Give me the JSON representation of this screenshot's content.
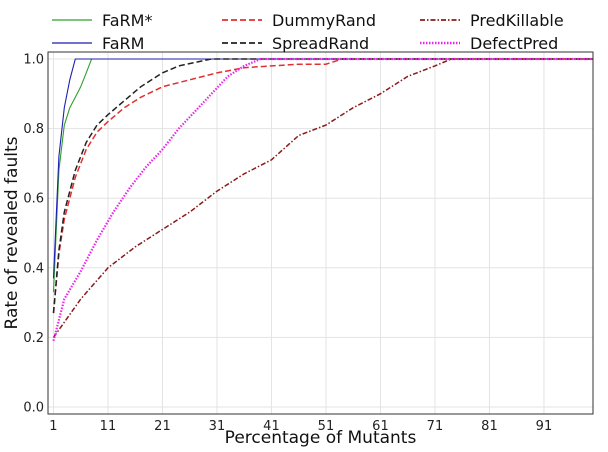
{
  "chart_data": {
    "type": "line",
    "title": "",
    "xlabel": "Percentage of Mutants",
    "ylabel": "Rate of revealed faults",
    "xlim": [
      0,
      100
    ],
    "ylim": [
      -0.02,
      1.02
    ],
    "xticks": [
      1,
      11,
      21,
      31,
      41,
      51,
      61,
      71,
      81,
      91
    ],
    "xtick_labels": [
      "1",
      "11",
      "21",
      "31",
      "41",
      "51",
      "61",
      "71",
      "81",
      "91"
    ],
    "yticks": [
      0.0,
      0.2,
      0.4,
      0.6,
      0.8,
      1.0
    ],
    "ytick_labels": [
      "0.0",
      "0.2",
      "0.4",
      "0.6",
      "0.8",
      "1.0"
    ],
    "grid": true,
    "legend_position": "top",
    "series": [
      {
        "name": "FaRM*",
        "color": "#2ca02c",
        "style": "solid",
        "x": [
          1,
          2,
          3,
          4,
          5,
          6,
          7,
          8,
          100
        ],
        "y": [
          0.33,
          0.68,
          0.81,
          0.86,
          0.89,
          0.92,
          0.96,
          1.0,
          1.0
        ]
      },
      {
        "name": "FaRM",
        "color": "#1f1fb0",
        "style": "solid",
        "x": [
          1,
          2,
          3,
          4,
          5,
          100
        ],
        "y": [
          0.37,
          0.72,
          0.86,
          0.94,
          1.0,
          1.0
        ]
      },
      {
        "name": "DummyRand",
        "color": "#e03030",
        "style": "dashed",
        "x": [
          1,
          2,
          3,
          5,
          7,
          9,
          11,
          14,
          17,
          21,
          26,
          31,
          36,
          41,
          46,
          51,
          54,
          100
        ],
        "y": [
          0.27,
          0.44,
          0.54,
          0.66,
          0.74,
          0.79,
          0.82,
          0.86,
          0.89,
          0.92,
          0.94,
          0.96,
          0.975,
          0.98,
          0.985,
          0.985,
          1.0,
          1.0
        ]
      },
      {
        "name": "SpreadRand",
        "color": "#222222",
        "style": "dashed",
        "x": [
          1,
          2,
          3,
          5,
          7,
          9,
          11,
          14,
          17,
          21,
          24,
          27,
          30,
          100
        ],
        "y": [
          0.27,
          0.45,
          0.56,
          0.68,
          0.76,
          0.81,
          0.84,
          0.88,
          0.92,
          0.96,
          0.98,
          0.99,
          1.0,
          1.0
        ]
      },
      {
        "name": "PredKillable",
        "color": "#8b1a1a",
        "style": "dashdot",
        "x": [
          1,
          6,
          11,
          16,
          21,
          26,
          31,
          36,
          41,
          46,
          51,
          56,
          61,
          66,
          71,
          74,
          100
        ],
        "y": [
          0.2,
          0.31,
          0.4,
          0.46,
          0.51,
          0.56,
          0.62,
          0.67,
          0.71,
          0.78,
          0.81,
          0.86,
          0.9,
          0.95,
          0.98,
          1.0,
          1.0
        ]
      },
      {
        "name": "DefectPred",
        "color": "#ee22ee",
        "style": "dotted",
        "x": [
          1,
          3,
          6,
          9,
          12,
          15,
          18,
          21,
          24,
          27,
          30,
          33,
          36,
          39,
          100
        ],
        "y": [
          0.19,
          0.31,
          0.39,
          0.48,
          0.56,
          0.63,
          0.69,
          0.74,
          0.8,
          0.85,
          0.9,
          0.95,
          0.98,
          1.0,
          1.0
        ]
      }
    ]
  }
}
